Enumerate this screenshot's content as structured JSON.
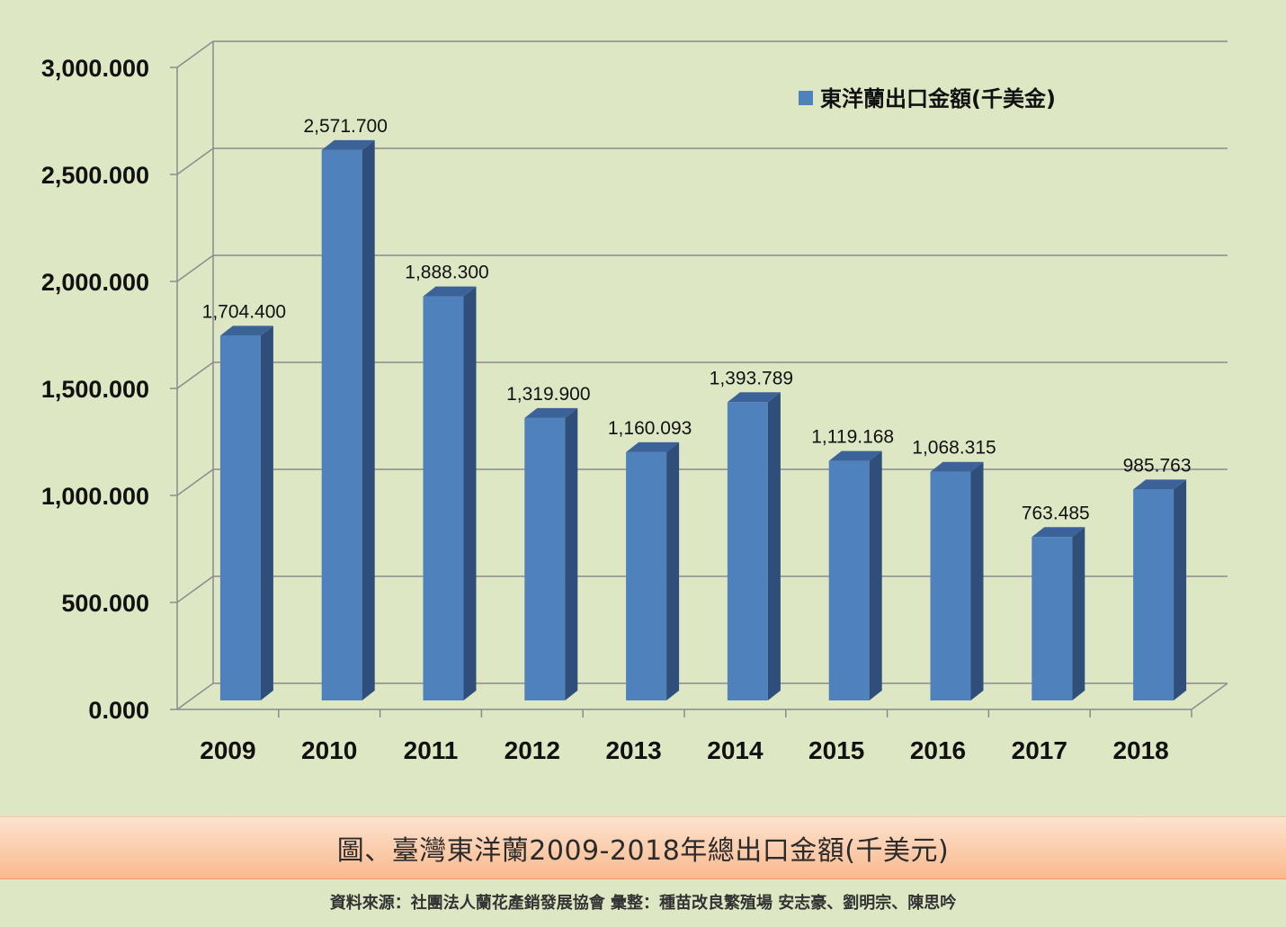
{
  "chart_data": {
    "type": "bar",
    "categories": [
      "2009",
      "2010",
      "2011",
      "2012",
      "2013",
      "2014",
      "2015",
      "2016",
      "2017",
      "2018"
    ],
    "series": [
      {
        "name": "東洋蘭出口金額(千美金)",
        "values": [
          1704.4,
          2571.7,
          1888.3,
          1319.9,
          1160.093,
          1393.789,
          1119.168,
          1068.315,
          763.485,
          985.763
        ],
        "labels": [
          "1,704.400",
          "2,571.700",
          "1,888.300",
          "1,319.900",
          "1,160.093",
          "1,393.789",
          "1,119.168",
          "1,068.315",
          "763.485",
          "985.763"
        ]
      }
    ],
    "ylim": [
      0,
      3000
    ],
    "yticks": [
      0,
      500,
      1000,
      1500,
      2000,
      2500,
      3000
    ],
    "ytick_labels": [
      "0.000",
      "500.000",
      "1,000.000",
      "1,500.000",
      "2,000.000",
      "2,500.000",
      "3,000.000"
    ],
    "grid": true,
    "legend_position": "top-right",
    "style": "3d-column",
    "colors": {
      "bar_front": "#4f81bd",
      "bar_side": "#2f4f7a",
      "bar_top": "#3b639a",
      "gridline": "#8c8c8c",
      "background": "#dde7c4"
    }
  },
  "caption": "圖、臺灣東洋蘭2009-2018年總出口金額(千美元)",
  "source": "資料來源：社團法人蘭花產銷發展協會  彙整：種苗改良繁殖場  安志豪、劉明宗、陳思吟"
}
